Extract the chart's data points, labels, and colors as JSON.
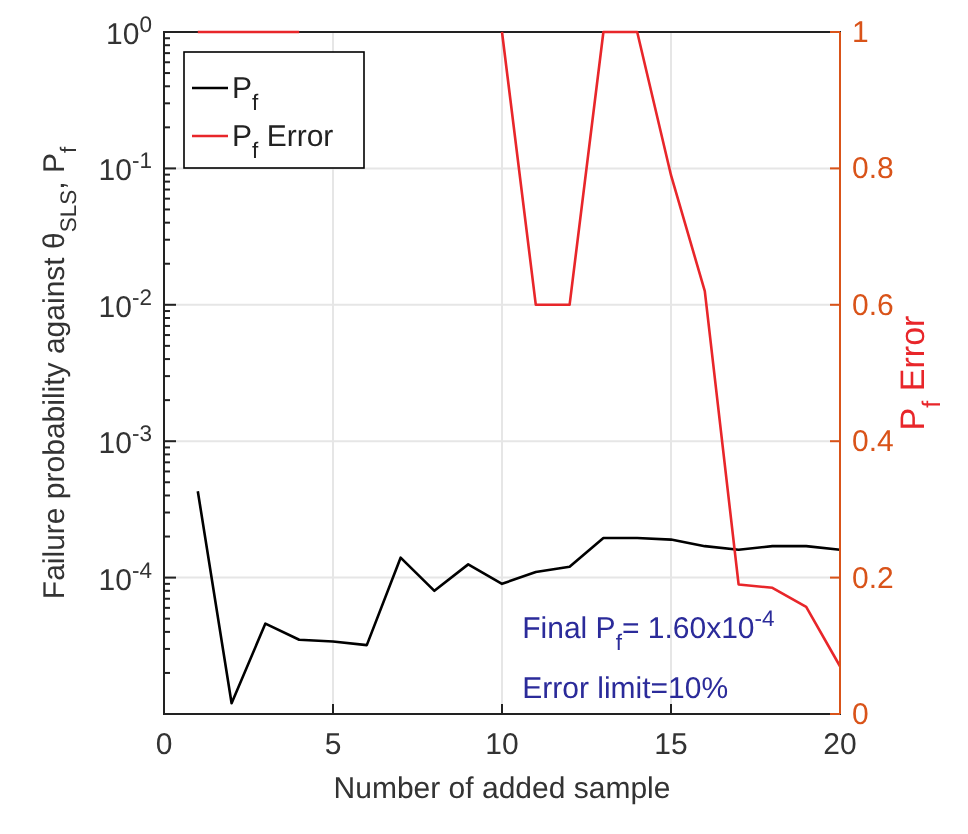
{
  "chart_data": {
    "type": "line",
    "xlabel": "Number of added sample",
    "ylabel": "Failure probability against θ$_{SLS}$, P$_{f}$",
    "y2label": "P$_{f}$ Error",
    "x": [
      1,
      2,
      3,
      4,
      5,
      6,
      7,
      8,
      9,
      10,
      11,
      12,
      13,
      14,
      15,
      16,
      17,
      18,
      19,
      20
    ],
    "series": [
      {
        "name": "P$_{f}$",
        "color": "#000000",
        "values": [
          0.00043,
          1.2e-05,
          4.6e-05,
          3.5e-05,
          3.4e-05,
          3.2e-05,
          0.00014,
          8e-05,
          0.000125,
          9e-05,
          0.00011,
          0.00012,
          0.000195,
          0.000195,
          0.00019,
          0.00017,
          0.00016,
          0.00017,
          0.00017,
          0.00016
        ]
      },
      {
        "name": "P$_{f}$ Error",
        "color": "#e8262a",
        "axis": "y2",
        "values": [
          1,
          1,
          1,
          1,
          null,
          null,
          null,
          null,
          null,
          1,
          0.6,
          0.6,
          1,
          1,
          0.79,
          0.62,
          0.19,
          0.185,
          0.157,
          0.07
        ]
      }
    ],
    "xlim": [
      0,
      20
    ],
    "xticks": [
      0,
      5,
      10,
      15,
      20
    ],
    "ylim": [
      1e-05,
      1
    ],
    "log": "y",
    "yticks": [
      {
        "value": 1,
        "label": "10$^{0}$"
      },
      {
        "value": 0.1,
        "label": "10$^{-1}$"
      },
      {
        "value": 0.01,
        "label": "10$^{-2}$"
      },
      {
        "value": 0.001,
        "label": "10$^{-3}$"
      },
      {
        "value": 0.0001,
        "label": "10$^{-4}$"
      }
    ],
    "y2lim": [
      0,
      1
    ],
    "y2ticks": [
      0,
      0.2,
      0.4,
      0.6,
      0.8,
      1
    ],
    "grid": true,
    "legend": "top left",
    "line_style": "solid",
    "annotations": [
      "Final P$_{f}$= 1.60x10$^{-4}$",
      "Error limit=10%"
    ]
  }
}
